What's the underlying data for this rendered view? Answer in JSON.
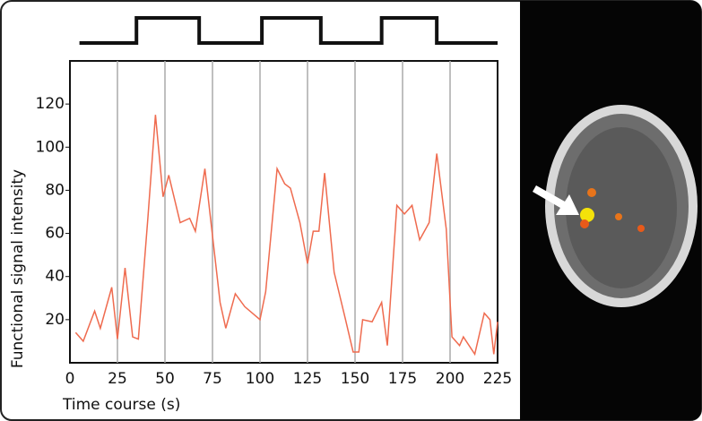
{
  "chart_data": {
    "type": "line",
    "xlabel": "Time course (s)",
    "ylabel": "Functional signal intensity",
    "x": [
      3,
      7,
      13,
      16,
      22,
      25,
      29,
      33,
      36,
      41,
      45,
      49,
      52,
      58,
      63,
      66,
      71,
      79,
      82,
      87,
      92,
      100,
      103,
      109,
      113,
      116,
      121,
      125,
      128,
      131,
      134,
      139,
      145,
      149,
      152,
      154,
      159,
      164,
      167,
      172,
      176,
      180,
      184,
      189,
      193,
      198,
      201,
      205,
      207,
      213,
      218,
      221,
      223,
      225
    ],
    "series": [
      {
        "color": "#ef6b4f",
        "values": [
          14,
          10,
          24,
          16,
          35,
          11,
          44,
          12,
          11,
          67,
          115,
          77,
          87,
          65,
          67,
          61,
          90,
          28,
          16,
          32,
          26,
          20,
          33,
          90,
          83,
          81,
          65,
          46,
          61,
          61,
          88,
          42,
          20,
          5,
          5,
          20,
          19,
          28,
          8,
          73,
          69,
          73,
          57,
          65,
          97,
          62,
          12,
          8,
          12,
          4,
          23,
          20,
          4,
          19
        ]
      }
    ],
    "stimulus": {
      "x": [
        5,
        35,
        35,
        68,
        68,
        101,
        101,
        132,
        132,
        164,
        164,
        193,
        193,
        225
      ],
      "values": [
        0,
        0,
        1,
        1,
        0,
        0,
        1,
        1,
        0,
        0,
        1,
        1,
        0,
        0
      ]
    },
    "xlim": [
      0,
      225
    ],
    "ylim": [
      0,
      140
    ],
    "xticks": [
      0,
      25,
      50,
      75,
      100,
      125,
      150,
      175,
      200,
      225
    ],
    "yticks": [
      20,
      40,
      60,
      80,
      100,
      120
    ],
    "xgrid": true
  }
}
